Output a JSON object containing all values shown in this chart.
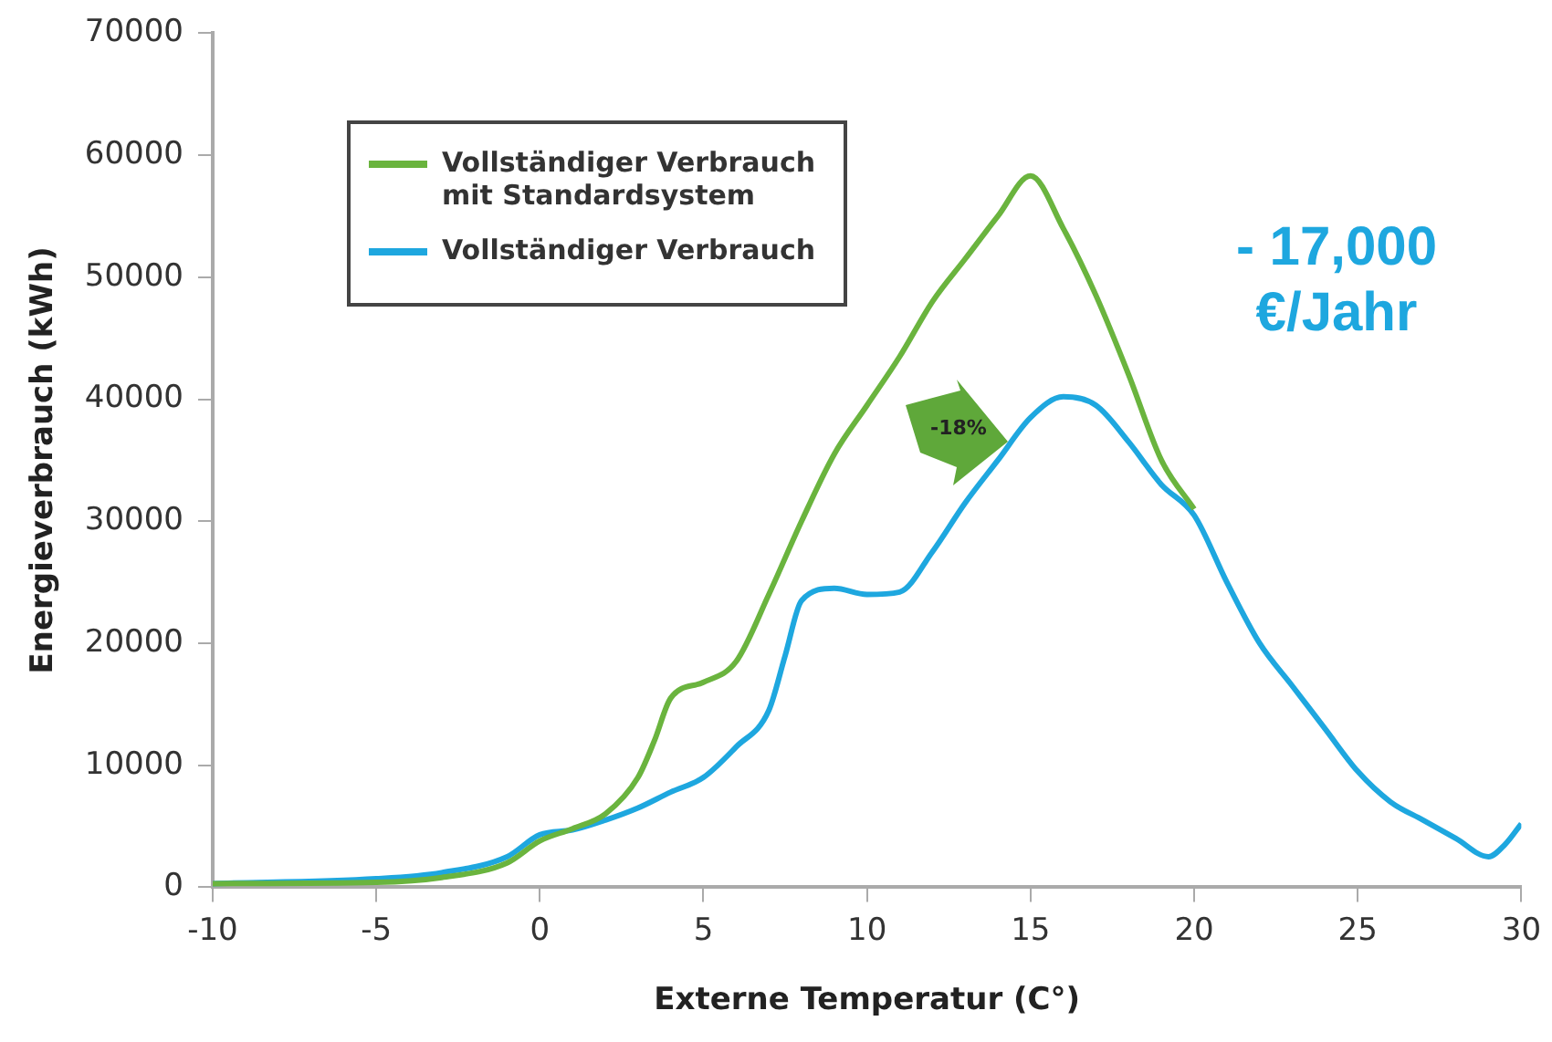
{
  "chart_data": {
    "type": "line",
    "xlabel": "Externe Temperatur (C°)",
    "ylabel": "Energieverbrauch (kWh)",
    "xlim": [
      -10,
      30
    ],
    "xticks": [
      -10,
      -5,
      0,
      5,
      10,
      15,
      20,
      25,
      30
    ],
    "ylim": [
      0,
      70000
    ],
    "yticks": [
      0,
      10000,
      20000,
      30000,
      40000,
      50000,
      60000,
      70000
    ],
    "grid": false,
    "legend": "top left",
    "marker": "none",
    "line_style": "solid",
    "annotations": [
      "-18%",
      "- 17,000 €/Jahr"
    ],
    "series": [
      {
        "name": "Vollständiger Verbrauch mit Standardsystem",
        "color": "#6ab43e",
        "x": [
          -10,
          -5,
          -3,
          -1,
          0,
          1,
          2,
          3,
          3.5,
          4,
          5,
          6,
          7,
          8,
          9,
          10,
          11,
          12,
          13,
          14,
          15,
          16,
          17,
          18,
          19,
          20
        ],
        "values": [
          300,
          400,
          800,
          2000,
          3800,
          4800,
          6000,
          9000,
          12000,
          15500,
          16800,
          18500,
          24000,
          30000,
          35500,
          39500,
          43500,
          48000,
          51500,
          55000,
          58300,
          54000,
          48500,
          42000,
          35000,
          31000
        ]
      },
      {
        "name": "Vollständiger Verbrauch",
        "color": "#1ea7df",
        "x": [
          -10,
          -5,
          -3,
          -1,
          0,
          1,
          2,
          3,
          4,
          5,
          6,
          7,
          7.5,
          8,
          9,
          10,
          11,
          12,
          13,
          14,
          15,
          16,
          17,
          18,
          19,
          20,
          21,
          22,
          23,
          24,
          25,
          26,
          27,
          28,
          29,
          29.5,
          30
        ],
        "values": [
          300,
          700,
          1200,
          2500,
          4300,
          4700,
          5500,
          6500,
          7800,
          9000,
          11500,
          14500,
          19000,
          23500,
          24500,
          24000,
          24200,
          27500,
          31500,
          35000,
          38500,
          40200,
          39500,
          36500,
          33000,
          30500,
          25000,
          20000,
          16500,
          13000,
          9500,
          7000,
          5500,
          4000,
          2500,
          3500,
          5200
        ]
      }
    ]
  }
}
